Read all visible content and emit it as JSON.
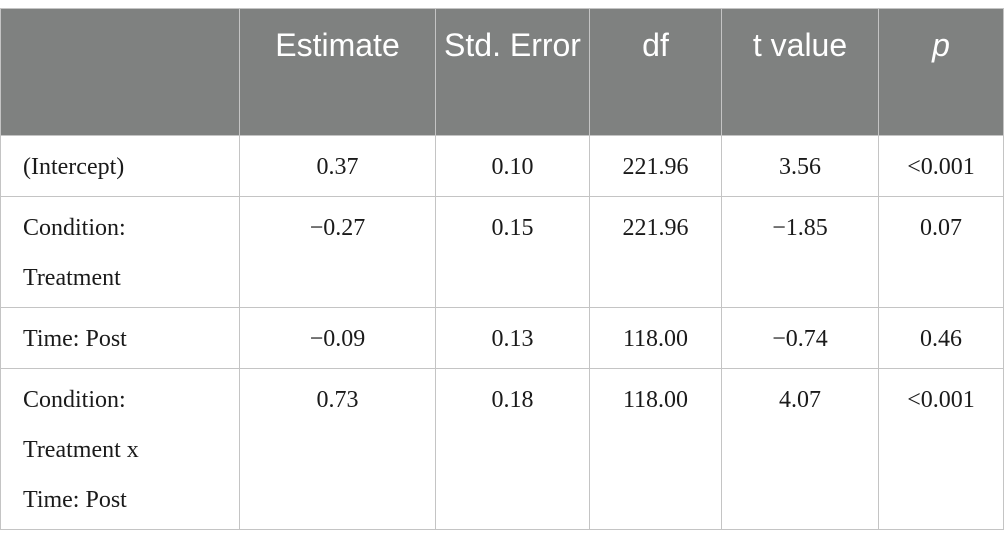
{
  "table": {
    "header": [
      "Estimate",
      "Std. Error",
      "df",
      "t value",
      "p"
    ],
    "rows": [
      [
        "(Intercept)",
        "0.37",
        "0.10",
        "221.96",
        "3.56",
        "<0.001"
      ],
      [
        "Condition: Treatment",
        "−0.27",
        "0.15",
        "221.96",
        "−1.85",
        "0.07"
      ],
      [
        "Time: Post",
        "−0.09",
        "0.13",
        "118.00",
        "−0.74",
        "0.46"
      ],
      [
        "Condition: Treatment x Time: Post",
        "0.73",
        "0.18",
        "118.00",
        "4.07",
        "<0.001"
      ]
    ]
  }
}
